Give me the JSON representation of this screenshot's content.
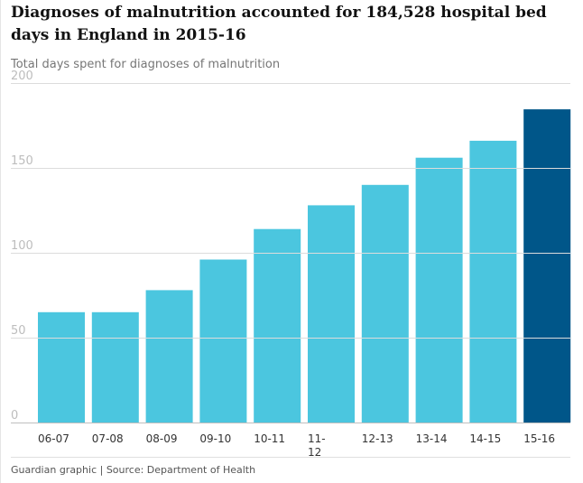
{
  "chart_data": {
    "type": "bar",
    "title": "Diagnoses of malnutrition accounted for 184,528 hospital bed days in England in 2015-16",
    "subtitle": "Total days spent for diagnoses of malnutrition",
    "categories": [
      "06-07",
      "07-08",
      "08-09",
      "09-10",
      "10-11",
      "11-12",
      "12-13",
      "13-14",
      "14-15",
      "15-16"
    ],
    "category_labels": [
      [
        "06-07"
      ],
      [
        "07-08"
      ],
      [
        "08-09"
      ],
      [
        "09-10"
      ],
      [
        "10-11"
      ],
      [
        "11-",
        "12"
      ],
      [
        "12-13"
      ],
      [
        "13-14"
      ],
      [
        "14-15"
      ],
      [
        "15-16"
      ]
    ],
    "values": [
      65,
      65,
      78,
      96,
      114,
      128,
      140,
      156,
      166,
      184.5
    ],
    "yticks": [
      0,
      50,
      100,
      150,
      200
    ],
    "ylim": [
      0,
      200
    ],
    "xlabel": "",
    "ylabel": "",
    "grid": true,
    "highlight_index": 9,
    "colors": {
      "bar": "#4bc6df",
      "highlight": "#005689",
      "grid": "#dcdcdc",
      "tick_text": "#bdbdbd",
      "category_text": "#333333"
    }
  },
  "footer": {
    "text": "Guardian graphic | Source: Department of Health"
  }
}
